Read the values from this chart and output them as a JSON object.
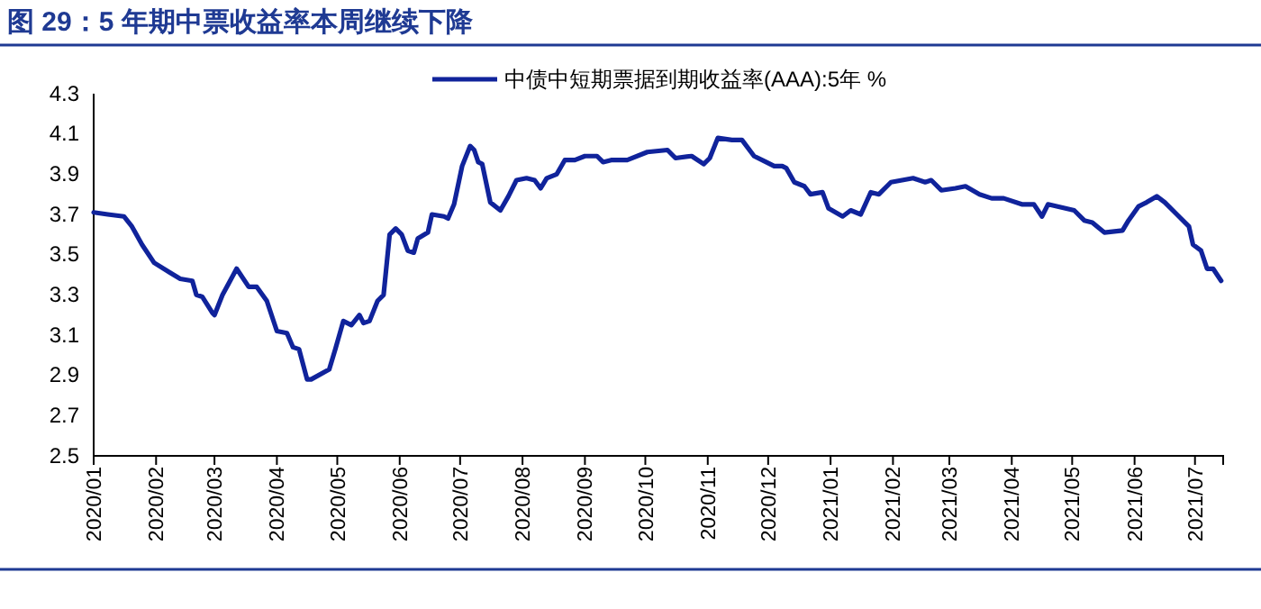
{
  "chart_data": {
    "type": "line",
    "title": "图 29：5 年期中票收益率本周继续下降",
    "xlim": [
      "2020-01-01",
      "2021-07-15"
    ],
    "xticks": [
      {
        "value": "2020-01-01",
        "label": "2020/01"
      },
      {
        "value": "2020-02-01",
        "label": "2020/02"
      },
      {
        "value": "2020-03-01",
        "label": "2020/03"
      },
      {
        "value": "2020-04-01",
        "label": "2020/04"
      },
      {
        "value": "2020-05-01",
        "label": "2020/05"
      },
      {
        "value": "2020-06-01",
        "label": "2020/06"
      },
      {
        "value": "2020-07-01",
        "label": "2020/07"
      },
      {
        "value": "2020-08-01",
        "label": "2020/08"
      },
      {
        "value": "2020-09-01",
        "label": "2020/09"
      },
      {
        "value": "2020-10-01",
        "label": "2020/10"
      },
      {
        "value": "2020-11-01",
        "label": "2020/11"
      },
      {
        "value": "2020-12-01",
        "label": "2020/12"
      },
      {
        "value": "2021-01-01",
        "label": "2021/01"
      },
      {
        "value": "2021-02-01",
        "label": "2021/02"
      },
      {
        "value": "2021-03-01",
        "label": "2021/03"
      },
      {
        "value": "2021-04-01",
        "label": "2021/04"
      },
      {
        "value": "2021-05-01",
        "label": "2021/05"
      },
      {
        "value": "2021-06-01",
        "label": "2021/06"
      },
      {
        "value": "2021-07-01",
        "label": "2021/07"
      }
    ],
    "ylim": [
      2.5,
      4.3
    ],
    "yticks": [
      2.5,
      2.7,
      2.9,
      3.1,
      3.3,
      3.5,
      3.7,
      3.9,
      4.1,
      4.3
    ],
    "grid": false,
    "legend": "top",
    "marker": "none",
    "line_style": "solid",
    "x": [
      "2020-01-01",
      "2020-01-08",
      "2020-01-16",
      "2020-01-20",
      "2020-01-25",
      "2020-01-31",
      "2020-02-08",
      "2020-02-13",
      "2020-02-19",
      "2020-02-21",
      "2020-02-24",
      "2020-02-29",
      "2020-03-01",
      "2020-03-05",
      "2020-03-12",
      "2020-03-18",
      "2020-03-22",
      "2020-03-27",
      "2020-04-01",
      "2020-04-06",
      "2020-04-09",
      "2020-04-12",
      "2020-04-16",
      "2020-04-18",
      "2020-04-27",
      "2020-04-30",
      "2020-05-04",
      "2020-05-08",
      "2020-05-12",
      "2020-05-14",
      "2020-05-17",
      "2020-05-21",
      "2020-05-24",
      "2020-05-27",
      "2020-05-30",
      "2020-06-02",
      "2020-06-05",
      "2020-06-08",
      "2020-06-10",
      "2020-06-15",
      "2020-06-17",
      "2020-06-23",
      "2020-06-25",
      "2020-06-28",
      "2020-07-02",
      "2020-07-06",
      "2020-07-08",
      "2020-07-10",
      "2020-07-12",
      "2020-07-16",
      "2020-07-21",
      "2020-07-25",
      "2020-07-29",
      "2020-08-03",
      "2020-08-07",
      "2020-08-10",
      "2020-08-13",
      "2020-08-18",
      "2020-08-22",
      "2020-08-27",
      "2020-09-01",
      "2020-09-07",
      "2020-09-10",
      "2020-09-14",
      "2020-09-22",
      "2020-10-02",
      "2020-10-12",
      "2020-10-16",
      "2020-10-24",
      "2020-10-30",
      "2020-11-02",
      "2020-11-06",
      "2020-11-13",
      "2020-11-18",
      "2020-11-24",
      "2020-11-30",
      "2020-12-04",
      "2020-12-08",
      "2020-12-10",
      "2020-12-14",
      "2020-12-19",
      "2020-12-22",
      "2020-12-28",
      "2020-12-31",
      "2021-01-07",
      "2021-01-11",
      "2021-01-16",
      "2021-01-21",
      "2021-01-25",
      "2021-01-31",
      "2021-02-11",
      "2021-02-17",
      "2021-02-20",
      "2021-02-25",
      "2021-03-04",
      "2021-03-09",
      "2021-03-16",
      "2021-03-22",
      "2021-03-28",
      "2021-04-06",
      "2021-04-12",
      "2021-04-16",
      "2021-04-19",
      "2021-05-02",
      "2021-05-07",
      "2021-05-11",
      "2021-05-17",
      "2021-05-26",
      "2021-05-29",
      "2021-06-03",
      "2021-06-07",
      "2021-06-12",
      "2021-06-16",
      "2021-06-22",
      "2021-06-28",
      "2021-06-30",
      "2021-07-04",
      "2021-07-07",
      "2021-07-10",
      "2021-07-12",
      "2021-07-14"
    ],
    "series": [
      {
        "name": "中债中短期票据到期收益率(AAA):5年 %",
        "color": "#10239b",
        "values": [
          3.71,
          3.7,
          3.69,
          3.64,
          3.55,
          3.46,
          3.41,
          3.38,
          3.37,
          3.3,
          3.29,
          3.21,
          3.2,
          3.3,
          3.43,
          3.34,
          3.34,
          3.27,
          3.12,
          3.11,
          3.04,
          3.03,
          2.88,
          2.88,
          2.93,
          3.03,
          3.17,
          3.15,
          3.2,
          3.16,
          3.17,
          3.27,
          3.3,
          3.6,
          3.63,
          3.6,
          3.52,
          3.51,
          3.58,
          3.61,
          3.7,
          3.69,
          3.68,
          3.75,
          3.94,
          4.04,
          4.02,
          3.96,
          3.95,
          3.76,
          3.72,
          3.79,
          3.87,
          3.88,
          3.87,
          3.83,
          3.88,
          3.9,
          3.97,
          3.97,
          3.99,
          3.99,
          3.96,
          3.97,
          3.97,
          4.01,
          4.02,
          3.98,
          3.99,
          3.95,
          3.98,
          4.08,
          4.07,
          4.07,
          3.99,
          3.96,
          3.94,
          3.94,
          3.93,
          3.86,
          3.84,
          3.8,
          3.81,
          3.73,
          3.69,
          3.72,
          3.7,
          3.81,
          3.8,
          3.86,
          3.88,
          3.86,
          3.87,
          3.82,
          3.83,
          3.84,
          3.8,
          3.78,
          3.78,
          3.75,
          3.75,
          3.69,
          3.75,
          3.72,
          3.67,
          3.66,
          3.61,
          3.62,
          3.67,
          3.74,
          3.76,
          3.79,
          3.76,
          3.7,
          3.64,
          3.55,
          3.52,
          3.43,
          3.43,
          3.4,
          3.37
        ]
      }
    ]
  }
}
